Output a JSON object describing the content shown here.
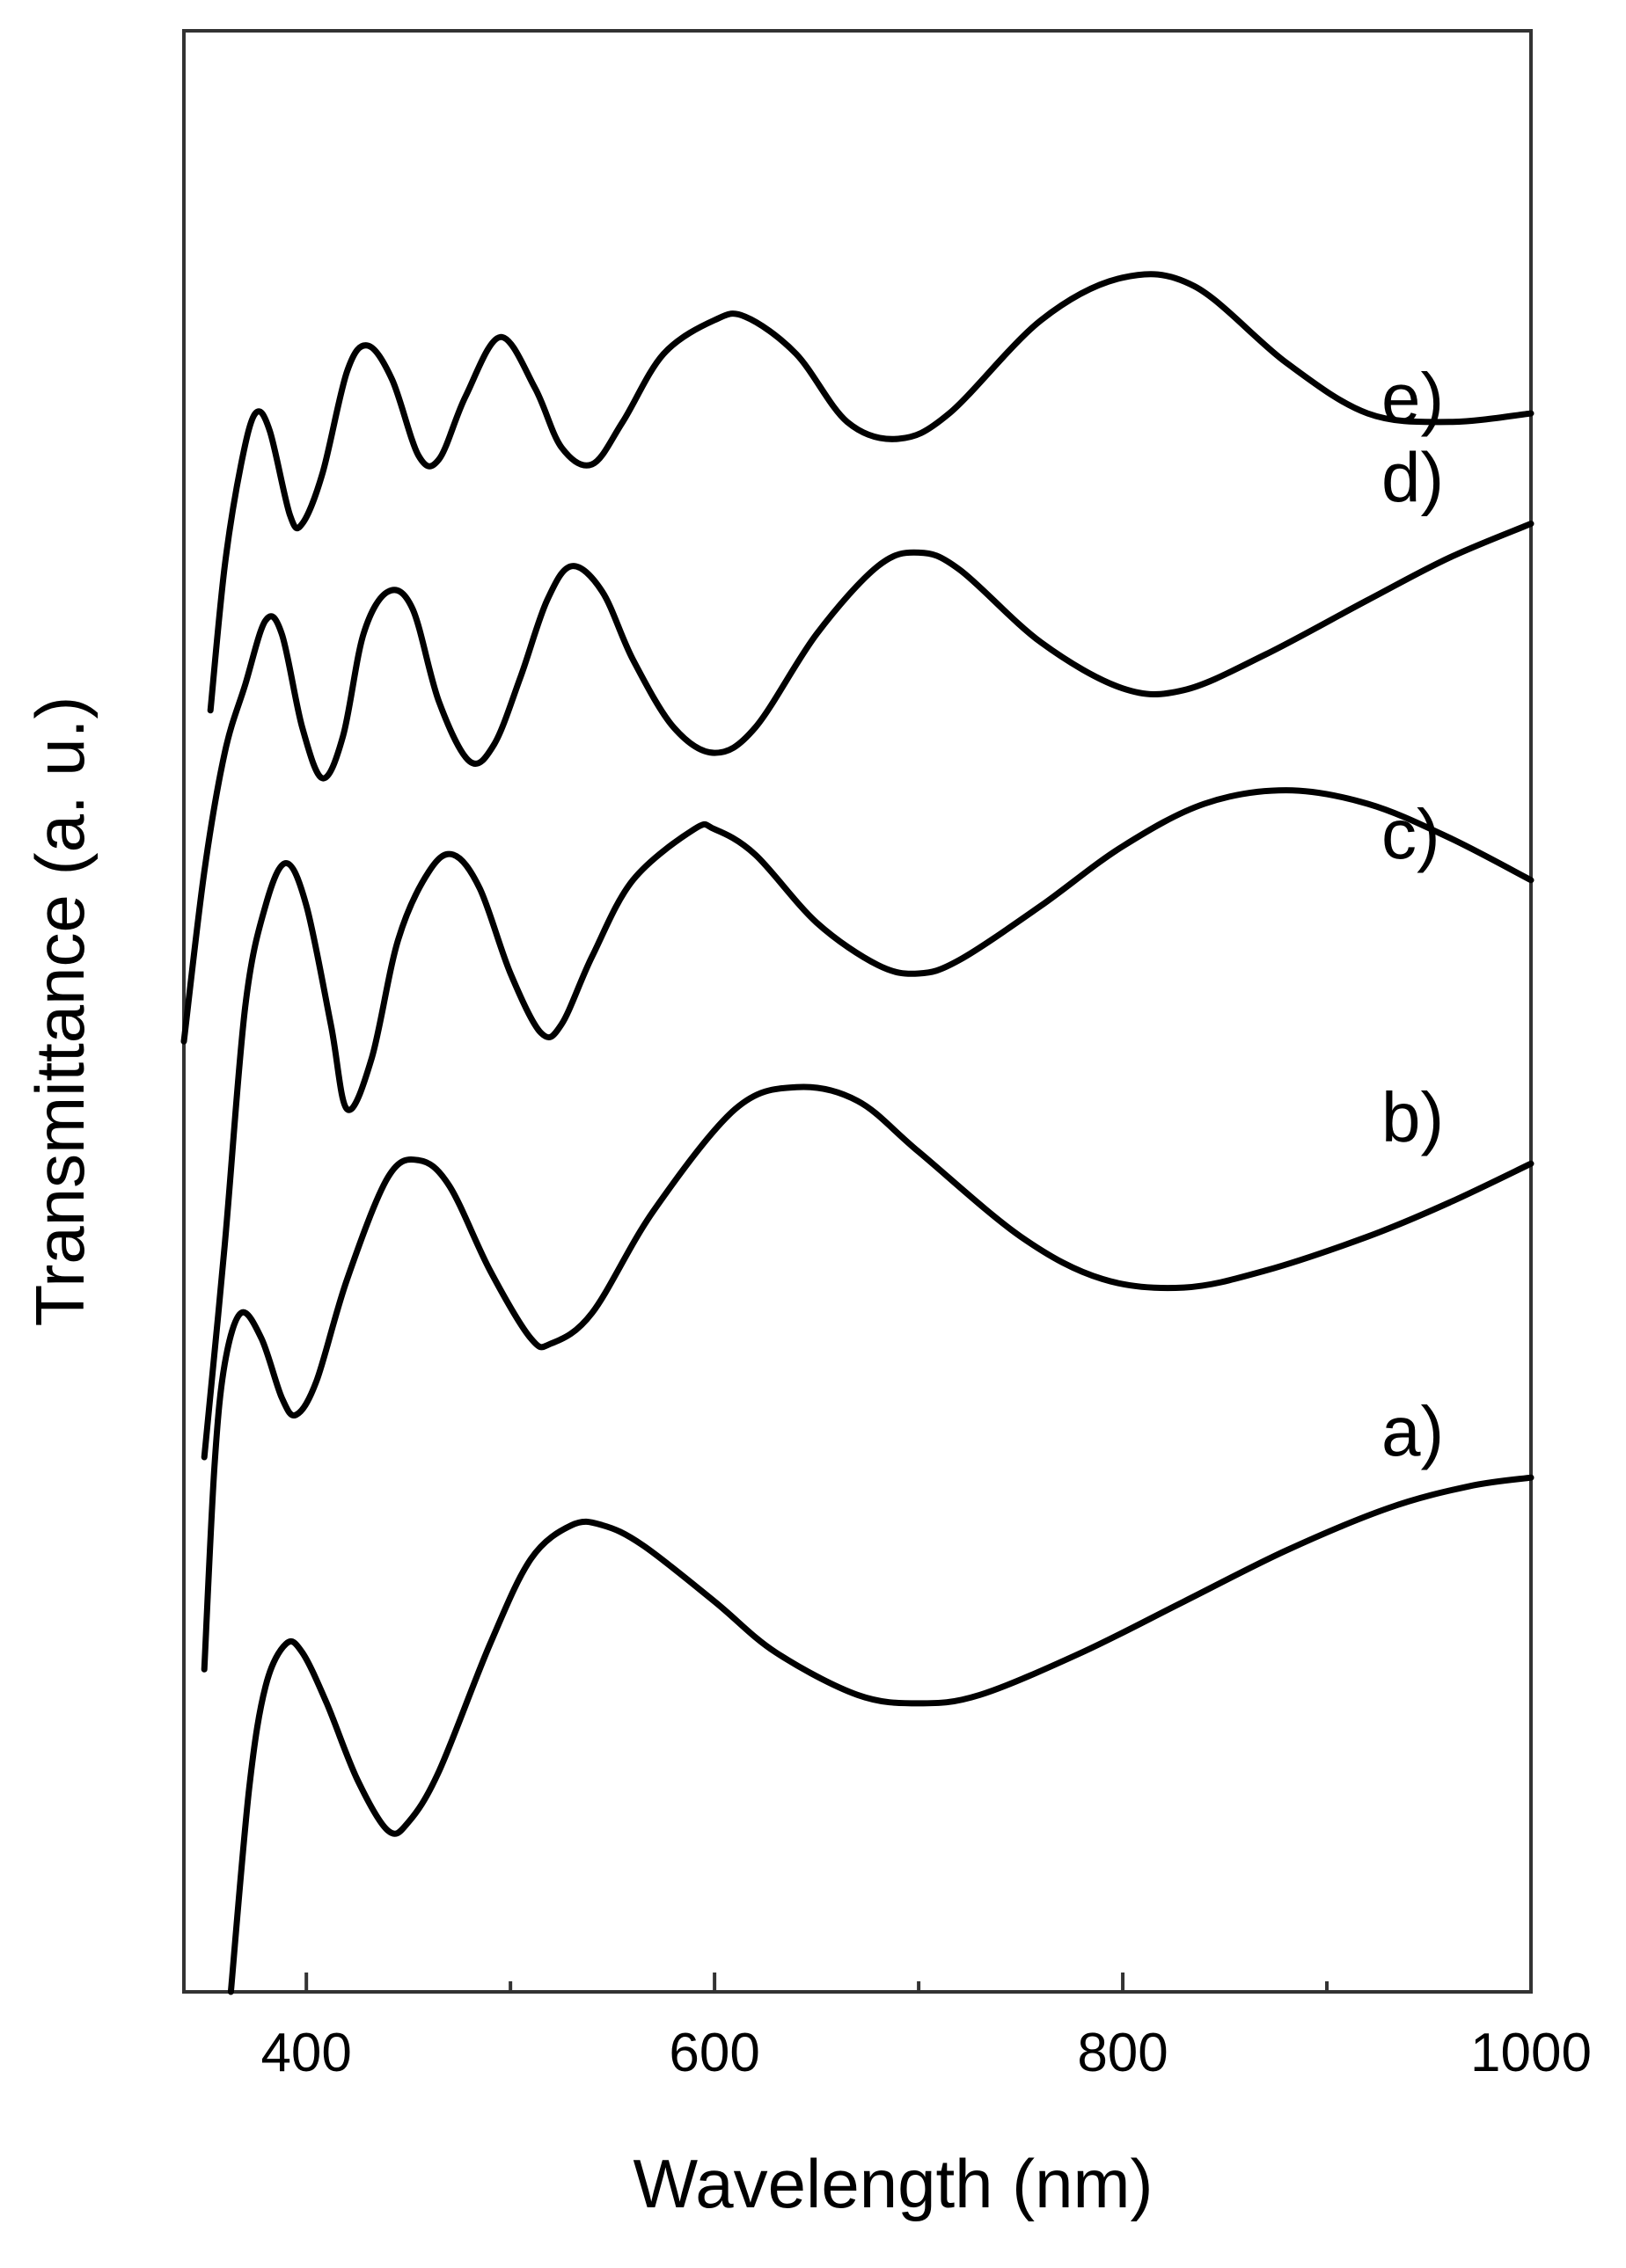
{
  "chart_data": {
    "type": "line",
    "title": "",
    "xlabel": "Wavelength (nm)",
    "ylabel": "Transmittance (a. u.)",
    "xlim": [
      340,
      1000
    ],
    "ylim": [
      0,
      100
    ],
    "x_major_ticks": [
      400,
      600,
      800,
      1000
    ],
    "x_minor_ticks": [
      500,
      700,
      900
    ],
    "x_tick_labels": [
      "400",
      "600",
      "800",
      "1000"
    ],
    "grid": false,
    "legend": "none",
    "line_color": "#000000",
    "series": [
      {
        "name": "a)",
        "points": [
          [
            363,
            0
          ],
          [
            372,
            12
          ],
          [
            380,
            18
          ],
          [
            390,
            20.5
          ],
          [
            398,
            20
          ],
          [
            410,
            17
          ],
          [
            425,
            12.5
          ],
          [
            440,
            9.5
          ],
          [
            450,
            10
          ],
          [
            465,
            13
          ],
          [
            490,
            20.5
          ],
          [
            510,
            25.5
          ],
          [
            530,
            27.5
          ],
          [
            545,
            27.5
          ],
          [
            565,
            26.3
          ],
          [
            600,
            23
          ],
          [
            630,
            20
          ],
          [
            670,
            17.5
          ],
          [
            700,
            17
          ],
          [
            730,
            17.5
          ],
          [
            780,
            20
          ],
          [
            830,
            23
          ],
          [
            880,
            26
          ],
          [
            930,
            28.5
          ],
          [
            970,
            29.8
          ],
          [
            1000,
            30.3
          ]
        ]
      },
      {
        "name": "b)",
        "points": [
          [
            350,
            19
          ],
          [
            355,
            31
          ],
          [
            360,
            37
          ],
          [
            368,
            40
          ],
          [
            378,
            38.5
          ],
          [
            388,
            35
          ],
          [
            395,
            34
          ],
          [
            405,
            36
          ],
          [
            420,
            42
          ],
          [
            440,
            48
          ],
          [
            455,
            49
          ],
          [
            470,
            47.5
          ],
          [
            490,
            42.5
          ],
          [
            510,
            38.5
          ],
          [
            520,
            38.2
          ],
          [
            540,
            40
          ],
          [
            570,
            46
          ],
          [
            610,
            52
          ],
          [
            640,
            53.3
          ],
          [
            670,
            52.5
          ],
          [
            700,
            49.5
          ],
          [
            750,
            44.5
          ],
          [
            790,
            42
          ],
          [
            830,
            41.5
          ],
          [
            870,
            42.5
          ],
          [
            920,
            44.5
          ],
          [
            960,
            46.5
          ],
          [
            1000,
            48.8
          ]
        ]
      },
      {
        "name": "c)",
        "points": [
          [
            350,
            31.5
          ],
          [
            360,
            44
          ],
          [
            370,
            58
          ],
          [
            380,
            64
          ],
          [
            390,
            66.5
          ],
          [
            400,
            64
          ],
          [
            412,
            57
          ],
          [
            420,
            52
          ],
          [
            432,
            55
          ],
          [
            445,
            62
          ],
          [
            460,
            66
          ],
          [
            472,
            67
          ],
          [
            485,
            65
          ],
          [
            500,
            60
          ],
          [
            515,
            56.5
          ],
          [
            525,
            57
          ],
          [
            540,
            61
          ],
          [
            560,
            65.5
          ],
          [
            590,
            68.5
          ],
          [
            600,
            68.5
          ],
          [
            620,
            67
          ],
          [
            650,
            63
          ],
          [
            680,
            60.5
          ],
          [
            700,
            60
          ],
          [
            720,
            60.8
          ],
          [
            760,
            64
          ],
          [
            800,
            67.5
          ],
          [
            840,
            70
          ],
          [
            880,
            70.8
          ],
          [
            920,
            70
          ],
          [
            960,
            68
          ],
          [
            1000,
            65.5
          ]
        ]
      },
      {
        "name": "d)",
        "points": [
          [
            340,
            56
          ],
          [
            350,
            66
          ],
          [
            360,
            73
          ],
          [
            370,
            77
          ],
          [
            380,
            80.8
          ],
          [
            388,
            80
          ],
          [
            398,
            74.5
          ],
          [
            408,
            71.5
          ],
          [
            418,
            74
          ],
          [
            428,
            80
          ],
          [
            440,
            82.5
          ],
          [
            452,
            81.5
          ],
          [
            465,
            76
          ],
          [
            480,
            72.5
          ],
          [
            492,
            73.5
          ],
          [
            505,
            77.5
          ],
          [
            518,
            82
          ],
          [
            530,
            84
          ],
          [
            545,
            82.5
          ],
          [
            560,
            78.5
          ],
          [
            580,
            74.5
          ],
          [
            600,
            73
          ],
          [
            620,
            74.5
          ],
          [
            650,
            80
          ],
          [
            680,
            84
          ],
          [
            700,
            84.8
          ],
          [
            720,
            83.8
          ],
          [
            760,
            79.5
          ],
          [
            800,
            76.8
          ],
          [
            830,
            76.7
          ],
          [
            870,
            78.8
          ],
          [
            920,
            82
          ],
          [
            960,
            84.5
          ],
          [
            1000,
            86.5
          ]
        ]
      },
      {
        "name": "e)",
        "points": [
          [
            353,
            75.5
          ],
          [
            360,
            84
          ],
          [
            368,
            90
          ],
          [
            375,
            93
          ],
          [
            382,
            92
          ],
          [
            392,
            87
          ],
          [
            398,
            86.5
          ],
          [
            408,
            89.5
          ],
          [
            420,
            95.5
          ],
          [
            430,
            97
          ],
          [
            442,
            95
          ],
          [
            455,
            90.5
          ],
          [
            465,
            90.3
          ],
          [
            478,
            94
          ],
          [
            495,
            97.5
          ],
          [
            512,
            94.5
          ],
          [
            525,
            91
          ],
          [
            540,
            90
          ],
          [
            555,
            92.5
          ],
          [
            575,
            96.5
          ],
          [
            600,
            98.5
          ],
          [
            615,
            98.7
          ],
          [
            640,
            96.5
          ],
          [
            665,
            92.5
          ],
          [
            690,
            91.5
          ],
          [
            715,
            93
          ],
          [
            760,
            98.5
          ],
          [
            800,
            101
          ],
          [
            835,
            100.5
          ],
          [
            880,
            96
          ],
          [
            920,
            93
          ],
          [
            960,
            92.5
          ],
          [
            1000,
            93
          ]
        ]
      }
    ],
    "annotations": [
      "a)",
      "b)",
      "c)",
      "d)",
      "e)"
    ]
  }
}
